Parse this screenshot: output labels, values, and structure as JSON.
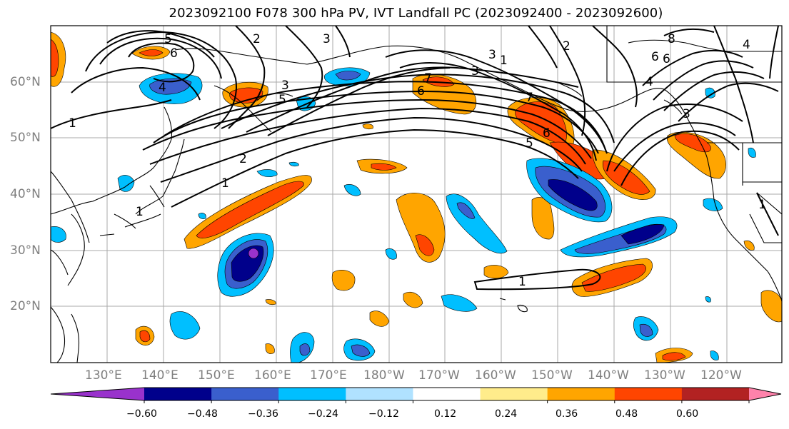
{
  "title": "2023092100 F078 300 hPa PV, IVT Landfall PC (2023092400 - 2023092600)",
  "lat_labels": [
    "60°N",
    "50°N",
    "40°N",
    "30°N",
    "20°N"
  ],
  "lon_labels": [
    "130°E",
    "140°E",
    "150°E",
    "160°E",
    "170°E",
    "180°W",
    "170°W",
    "160°W",
    "150°W",
    "140°W",
    "130°W",
    "120°W"
  ],
  "colorbar": {
    "colors": [
      "#9932cc",
      "#00008b",
      "#3a5fcd",
      "#00bfff",
      "#b0e2ff",
      "#ffffff",
      "#ffec8b",
      "#ffa500",
      "#ff4500",
      "#b22222",
      "#ff82ab"
    ],
    "tick_labels": [
      "−0.60",
      "−0.48",
      "−0.36",
      "−0.24",
      "−0.12",
      "0.12",
      "0.24",
      "0.36",
      "0.48",
      "0.60"
    ]
  },
  "contour_labels": [
    "5",
    "6",
    "4",
    "3",
    "2",
    "1",
    "7",
    "6",
    "3",
    "5",
    "1",
    "2",
    "1",
    "2",
    "1",
    "6",
    "7",
    "5",
    "6",
    "4",
    "3",
    "1",
    "8",
    "6",
    "4",
    "3",
    "3",
    "1"
  ]
}
